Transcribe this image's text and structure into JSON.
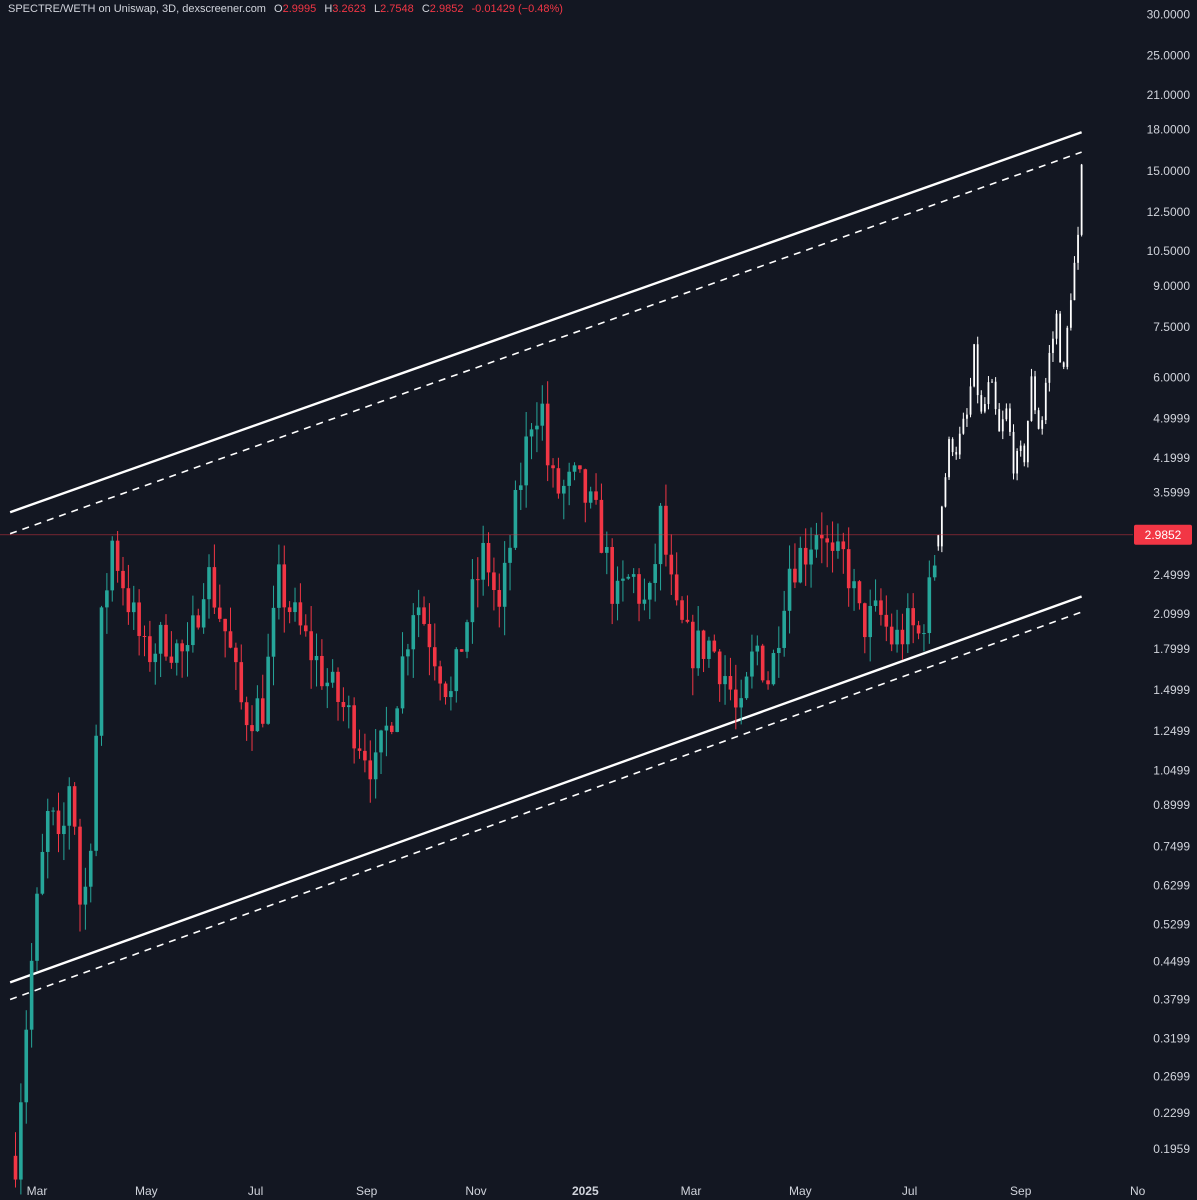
{
  "header": {
    "title": "SPECTRE/WETH on Uniswap, 3D, dexscreener.com",
    "o_label": "O",
    "o_value": "2.9995",
    "h_label": "H",
    "h_value": "3.2623",
    "l_label": "L",
    "l_value": "2.7548",
    "c_label": "C",
    "c_value": "2.9852",
    "change": "-0.01429 (−0.48%)"
  },
  "colors": {
    "background": "#131722",
    "up": "#26a69a",
    "down": "#f23645",
    "projection": "#ffffff",
    "lines": "#ffffff",
    "price_badge": "#f23645"
  },
  "chart_data": {
    "type": "candlestick",
    "scale": "log",
    "ylim": [
      0.18,
      32
    ],
    "y_ticks": [
      "30.0000",
      "25.0000",
      "21.0000",
      "18.0000",
      "15.0000",
      "12.5000",
      "10.5000",
      "9.0000",
      "7.5000",
      "6.0000",
      "4.9999",
      "4.1999",
      "3.5999",
      "2.4999",
      "2.0999",
      "1.7999",
      "1.4999",
      "1.2499",
      "1.0499",
      "0.8999",
      "0.7499",
      "0.6299",
      "0.5299",
      "0.4499",
      "0.3799",
      "0.3199",
      "0.2699",
      "0.2299",
      "0.1959"
    ],
    "x_ticks": [
      {
        "label": "Mar",
        "date": "2024-03-01"
      },
      {
        "label": "May",
        "date": "2024-05-01"
      },
      {
        "label": "Jul",
        "date": "2024-07-01"
      },
      {
        "label": "Sep",
        "date": "2024-09-01"
      },
      {
        "label": "Nov",
        "date": "2024-11-01"
      },
      {
        "label": "2025",
        "date": "2025-01-01"
      },
      {
        "label": "Mar",
        "date": "2025-03-01"
      },
      {
        "label": "May",
        "date": "2025-05-01"
      },
      {
        "label": "Jul",
        "date": "2025-07-01"
      },
      {
        "label": "Sep",
        "date": "2025-09-01"
      },
      {
        "label": "No",
        "date": "2025-11-01"
      }
    ],
    "current_price": "2.9852",
    "channel_upper": {
      "start": {
        "date": "2024-02-15",
        "value": 3.3
      },
      "end": {
        "date": "2025-10-05",
        "value": 17.8
      }
    },
    "channel_upper_dashed": {
      "start": {
        "date": "2024-02-15",
        "value": 3.0
      },
      "end": {
        "date": "2025-10-05",
        "value": 16.3
      }
    },
    "channel_lower": {
      "start": {
        "date": "2024-02-15",
        "value": 0.41
      },
      "end": {
        "date": "2025-10-05",
        "value": 2.27
      }
    },
    "channel_lower_dashed": {
      "start": {
        "date": "2024-02-15",
        "value": 0.38
      },
      "end": {
        "date": "2025-10-05",
        "value": 2.12
      }
    },
    "price_path": [
      {
        "date": "2024-02-18",
        "value": 0.19
      },
      {
        "date": "2024-02-25",
        "value": 0.38
      },
      {
        "date": "2024-03-02",
        "value": 0.62
      },
      {
        "date": "2024-03-08",
        "value": 0.9
      },
      {
        "date": "2024-03-14",
        "value": 0.7
      },
      {
        "date": "2024-03-20",
        "value": 1.08
      },
      {
        "date": "2024-03-26",
        "value": 0.52
      },
      {
        "date": "2024-04-01",
        "value": 0.88
      },
      {
        "date": "2024-04-06",
        "value": 2.0
      },
      {
        "date": "2024-04-12",
        "value": 2.9
      },
      {
        "date": "2024-04-20",
        "value": 2.3
      },
      {
        "date": "2024-04-30",
        "value": 1.75
      },
      {
        "date": "2024-05-12",
        "value": 1.9
      },
      {
        "date": "2024-05-24",
        "value": 1.7
      },
      {
        "date": "2024-06-03",
        "value": 2.6
      },
      {
        "date": "2024-06-15",
        "value": 1.9
      },
      {
        "date": "2024-06-24",
        "value": 1.35
      },
      {
        "date": "2024-07-05",
        "value": 1.4
      },
      {
        "date": "2024-07-14",
        "value": 2.4
      },
      {
        "date": "2024-07-26",
        "value": 1.95
      },
      {
        "date": "2024-08-10",
        "value": 1.55
      },
      {
        "date": "2024-08-24",
        "value": 1.3
      },
      {
        "date": "2024-09-06",
        "value": 1.05
      },
      {
        "date": "2024-09-18",
        "value": 1.5
      },
      {
        "date": "2024-09-28",
        "value": 2.3
      },
      {
        "date": "2024-10-10",
        "value": 1.75
      },
      {
        "date": "2024-10-18",
        "value": 1.45
      },
      {
        "date": "2024-10-26",
        "value": 2.0
      },
      {
        "date": "2024-11-06",
        "value": 2.8
      },
      {
        "date": "2024-11-14",
        "value": 2.1
      },
      {
        "date": "2024-11-24",
        "value": 3.5
      },
      {
        "date": "2024-12-03",
        "value": 5.3
      },
      {
        "date": "2024-12-08",
        "value": 5.2
      },
      {
        "date": "2024-12-12",
        "value": 3.8
      },
      {
        "date": "2024-12-18",
        "value": 3.6
      },
      {
        "date": "2024-12-27",
        "value": 3.8
      },
      {
        "date": "2025-01-09",
        "value": 3.1
      },
      {
        "date": "2025-01-18",
        "value": 2.2
      },
      {
        "date": "2025-01-27",
        "value": 2.5
      },
      {
        "date": "2025-02-05",
        "value": 2.1
      },
      {
        "date": "2025-02-12",
        "value": 3.2
      },
      {
        "date": "2025-02-20",
        "value": 2.1
      },
      {
        "date": "2025-03-01",
        "value": 1.8
      },
      {
        "date": "2025-03-12",
        "value": 1.85
      },
      {
        "date": "2025-03-22",
        "value": 1.55
      },
      {
        "date": "2025-03-28",
        "value": 1.27
      },
      {
        "date": "2025-04-06",
        "value": 1.85
      },
      {
        "date": "2025-04-14",
        "value": 1.55
      },
      {
        "date": "2025-04-24",
        "value": 2.6
      },
      {
        "date": "2025-05-04",
        "value": 2.8
      },
      {
        "date": "2025-05-12",
        "value": 3.2
      },
      {
        "date": "2025-05-18",
        "value": 2.6
      },
      {
        "date": "2025-05-26",
        "value": 2.7
      },
      {
        "date": "2025-06-04",
        "value": 2.0
      },
      {
        "date": "2025-06-14",
        "value": 2.1
      },
      {
        "date": "2025-06-22",
        "value": 1.85
      },
      {
        "date": "2025-07-01",
        "value": 2.0
      },
      {
        "date": "2025-07-06",
        "value": 1.9
      },
      {
        "date": "2025-07-12",
        "value": 2.3
      },
      {
        "date": "2025-07-17",
        "value": 2.98
      }
    ],
    "projection_path": [
      {
        "date": "2025-07-17",
        "value": 2.98
      },
      {
        "date": "2025-07-20",
        "value": 3.7
      },
      {
        "date": "2025-07-24",
        "value": 4.6
      },
      {
        "date": "2025-07-28",
        "value": 4.4
      },
      {
        "date": "2025-08-02",
        "value": 5.0
      },
      {
        "date": "2025-08-06",
        "value": 6.5
      },
      {
        "date": "2025-08-10",
        "value": 5.0
      },
      {
        "date": "2025-08-15",
        "value": 5.8
      },
      {
        "date": "2025-08-20",
        "value": 4.6
      },
      {
        "date": "2025-08-24",
        "value": 5.1
      },
      {
        "date": "2025-08-29",
        "value": 4.0
      },
      {
        "date": "2025-09-03",
        "value": 4.3
      },
      {
        "date": "2025-09-07",
        "value": 5.8
      },
      {
        "date": "2025-09-12",
        "value": 4.7
      },
      {
        "date": "2025-09-16",
        "value": 6.3
      },
      {
        "date": "2025-09-21",
        "value": 7.8
      },
      {
        "date": "2025-09-25",
        "value": 6.0
      },
      {
        "date": "2025-09-29",
        "value": 8.9
      },
      {
        "date": "2025-10-03",
        "value": 10.8
      },
      {
        "date": "2025-10-06",
        "value": 16.8
      }
    ]
  }
}
